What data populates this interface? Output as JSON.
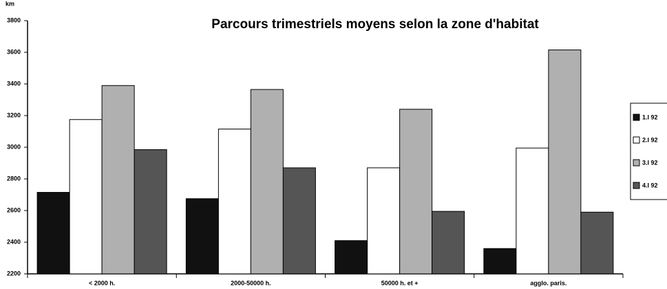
{
  "chart_data": {
    "type": "bar",
    "title": "Parcours trimestriels moyens selon la zone d'habitat",
    "y_label": "km",
    "categories": [
      "< 2000 h.",
      "2000-50000 h.",
      "50000 h. et +",
      "agglo. paris."
    ],
    "series": [
      {
        "name": "1.I 92",
        "color": "#111111",
        "values": [
          2715,
          2675,
          2410,
          2360
        ]
      },
      {
        "name": "2.I 92",
        "color": "#ffffff",
        "values": [
          3175,
          3115,
          2870,
          2995
        ]
      },
      {
        "name": "3.I 92",
        "color": "#b0b0b0",
        "values": [
          3390,
          3365,
          3240,
          3615
        ]
      },
      {
        "name": "4.I 92",
        "color": "#555555",
        "values": [
          2985,
          2870,
          2595,
          2590
        ]
      }
    ],
    "ylim": [
      2200,
      3800
    ],
    "yticks": [
      2200,
      2400,
      2600,
      2800,
      3000,
      3200,
      3400,
      3600,
      3800
    ],
    "legend": "right"
  }
}
